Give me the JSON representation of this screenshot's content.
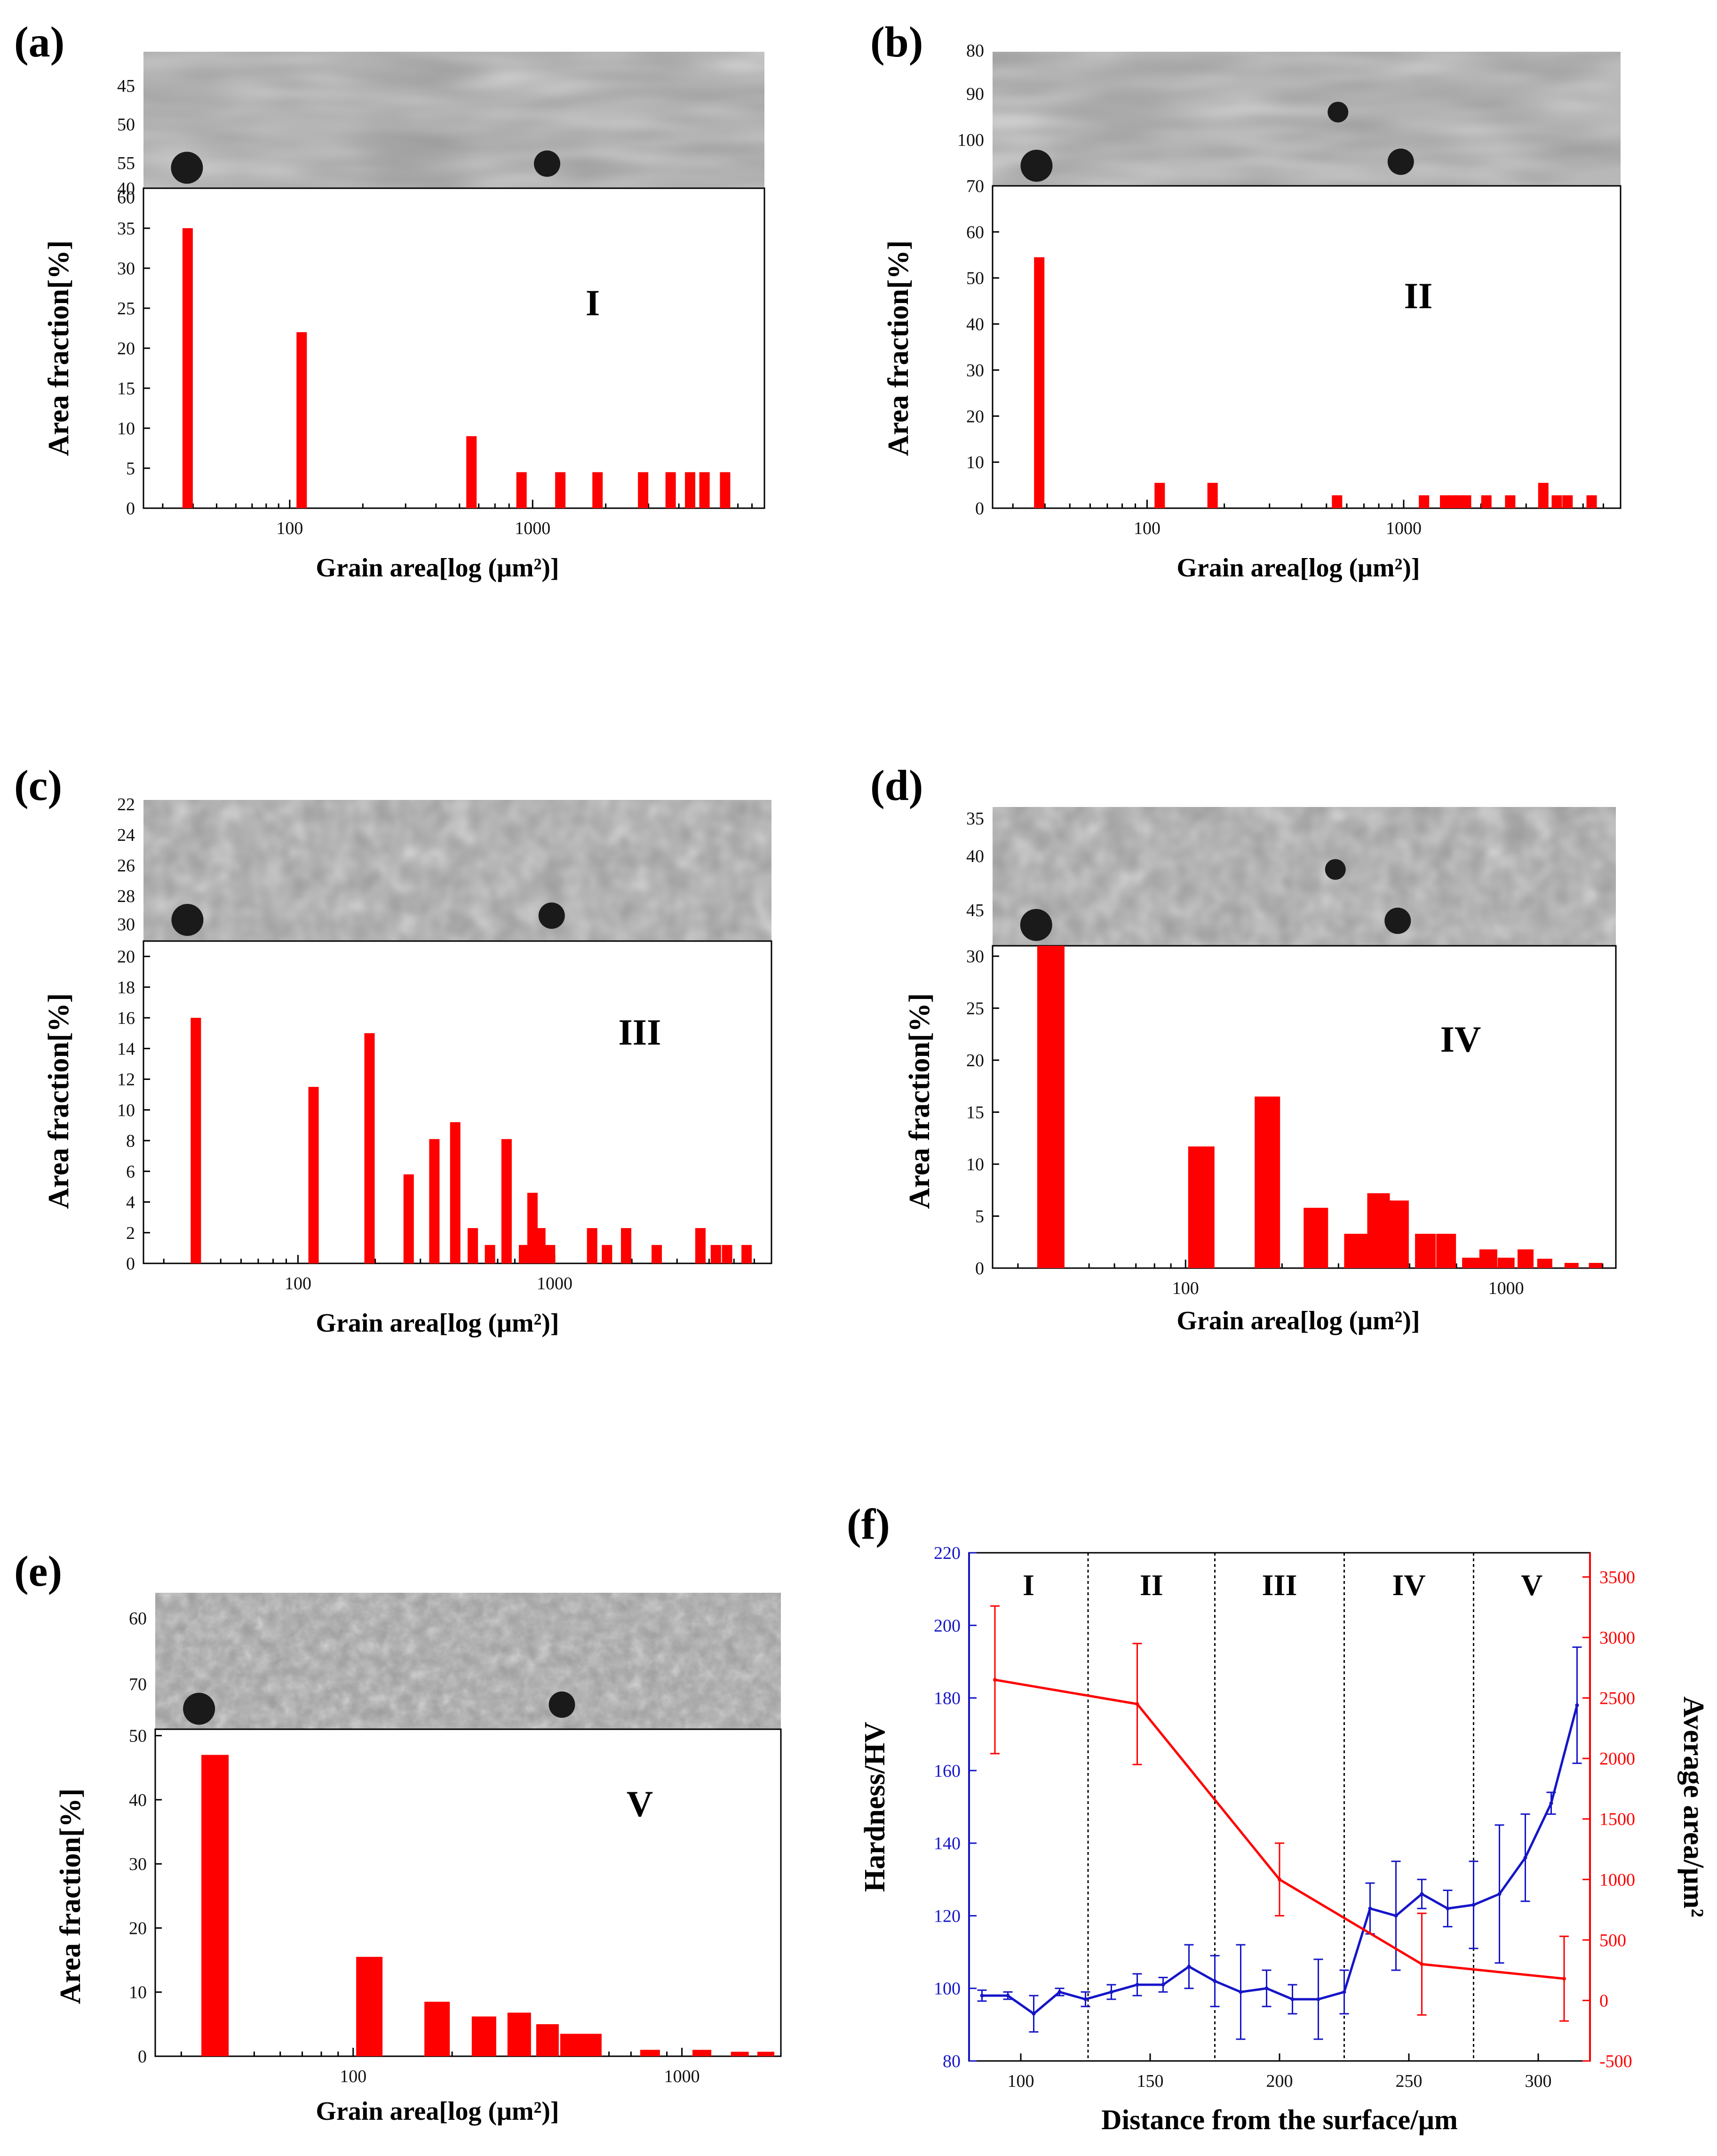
{
  "colors": {
    "bar": "#ff0000",
    "hardness": "#1515c8",
    "area": "#ff0000",
    "micrograph": "#9a9a9a",
    "axis": "#000000"
  },
  "axis_labels": {
    "area_fraction": "Area fraction[%]",
    "grain_area": "Grain area[log (μm²)]"
  },
  "chart_data": [
    {
      "panel": "(a)",
      "type": "bar",
      "zone": "I",
      "xscale": "log",
      "xlim": [
        25,
        9000
      ],
      "ylim": [
        0,
        40
      ],
      "xticks": [
        "100",
        "1000"
      ],
      "yticks": [
        "0",
        "5",
        "10",
        "15",
        "20",
        "25",
        "30",
        "35",
        "40"
      ],
      "image_yticks": [
        "45",
        "50",
        "55",
        "60"
      ],
      "xlabel": "Grain area[log (μm²)]",
      "ylabel": "Area fraction[%]",
      "x": [
        38,
        112,
        560,
        900,
        1300,
        1850,
        2850,
        3700,
        4450,
        5100,
        6200
      ],
      "values": [
        35,
        22,
        9,
        4.5,
        4.5,
        4.5,
        4.5,
        4.5,
        4.5,
        4.5,
        4.5
      ]
    },
    {
      "panel": "(b)",
      "type": "bar",
      "zone": "II",
      "xscale": "log",
      "xlim": [
        25,
        7000
      ],
      "ylim": [
        0,
        70
      ],
      "xticks": [
        "100",
        "1000"
      ],
      "yticks": [
        "0",
        "10",
        "20",
        "30",
        "40",
        "50",
        "60",
        "70"
      ],
      "image_yticks": [
        "80",
        "90",
        "100"
      ],
      "xlabel": "Grain area[log (μm²)]",
      "ylabel": "Area fraction[%]",
      "x": [
        38,
        112,
        180,
        550,
        1200,
        1450,
        1550,
        1650,
        1750,
        2100,
        2600,
        3500,
        3950,
        4350,
        5400
      ],
      "values": [
        54.5,
        5.5,
        5.5,
        2.8,
        2.8,
        2.8,
        2.8,
        2.8,
        2.8,
        2.8,
        2.8,
        5.5,
        2.8,
        2.8,
        2.8
      ]
    },
    {
      "panel": "(c)",
      "type": "bar",
      "zone": "III",
      "xscale": "log",
      "xlim": [
        25,
        7000
      ],
      "ylim": [
        0,
        21
      ],
      "xticks": [
        "100",
        "1000"
      ],
      "yticks": [
        "0",
        "2",
        "4",
        "6",
        "8",
        "10",
        "12",
        "14",
        "16",
        "18",
        "20"
      ],
      "image_yticks": [
        "22",
        "24",
        "26",
        "28",
        "30"
      ],
      "xlabel": "Grain area[log (μm²)]",
      "ylabel": "Area fraction[%]",
      "x": [
        40,
        115,
        190,
        270,
        340,
        410,
        480,
        560,
        650,
        760,
        820,
        880,
        960,
        1400,
        1600,
        1900,
        2500,
        3700,
        4250,
        4700,
        5600
      ],
      "values": [
        16,
        11.5,
        15,
        5.8,
        8.1,
        9.2,
        2.3,
        1.2,
        8.1,
        1.2,
        4.6,
        2.3,
        1.2,
        2.3,
        1.2,
        2.3,
        1.2,
        2.3,
        1.2,
        1.2,
        1.2
      ]
    },
    {
      "panel": "(d)",
      "type": "bar",
      "zone": "IV",
      "xscale": "log",
      "xlim": [
        25,
        2200
      ],
      "ylim": [
        0,
        31
      ],
      "xticks": [
        "100",
        "1000"
      ],
      "yticks": [
        "0",
        "5",
        "10",
        "15",
        "20",
        "25",
        "30"
      ],
      "image_yticks": [
        "35",
        "40",
        "45"
      ],
      "xlabel": "Grain area[log (μm²)]",
      "ylabel": "Area fraction[%]",
      "x": [
        38,
        112,
        180,
        255,
        340,
        400,
        460,
        560,
        650,
        780,
        880,
        1000,
        1150,
        1320,
        1600,
        1900
      ],
      "values": [
        31.5,
        11.7,
        16.5,
        5.8,
        3.3,
        7.2,
        6.5,
        3.3,
        3.3,
        1,
        1.8,
        1,
        1.8,
        0.9,
        0.5,
        0.5
      ]
    },
    {
      "panel": "(e)",
      "type": "bar",
      "zone": "V",
      "xscale": "log",
      "xlim": [
        25,
        2000
      ],
      "ylim": [
        0,
        51
      ],
      "xticks": [
        "100",
        "1000"
      ],
      "yticks": [
        "0",
        "10",
        "20",
        "30",
        "40",
        "50"
      ],
      "image_yticks": [
        "60",
        "70"
      ],
      "xlabel": "Grain area[log (μm²)]",
      "ylabel": "Area fraction[%]",
      "x": [
        38,
        112,
        180,
        250,
        320,
        390,
        460,
        530,
        800,
        1150,
        1500,
        1800
      ],
      "values": [
        47,
        15.5,
        8.5,
        6.2,
        6.8,
        5,
        3.5,
        3.5,
        1,
        1,
        0.7,
        0.7
      ]
    },
    {
      "panel": "(f)",
      "type": "line",
      "xlabel": "Distance from the surface/μm",
      "ylabel": "Hardness/HV",
      "y2label": "Average area/μm²",
      "xlim": [
        80,
        320
      ],
      "ylim": [
        80,
        220
      ],
      "y2lim": [
        -500,
        3700
      ],
      "xticks": [
        "100",
        "150",
        "200",
        "250",
        "300"
      ],
      "yticks": [
        "80",
        "100",
        "120",
        "140",
        "160",
        "180",
        "200",
        "220"
      ],
      "y2ticks": [
        "-500",
        "0",
        "500",
        "1000",
        "1500",
        "2000",
        "2500",
        "3000",
        "3500"
      ],
      "zones": [
        "I",
        "II",
        "III",
        "IV",
        "V"
      ],
      "zone_boundaries": [
        126,
        175,
        225,
        275
      ],
      "series": [
        {
          "axis": "left",
          "x": [
            85,
            95,
            105,
            115,
            125,
            135,
            145,
            155,
            165,
            175,
            185,
            195,
            205,
            215,
            225,
            235,
            245,
            255,
            265,
            275,
            285,
            295,
            305,
            315
          ],
          "y": [
            98,
            98,
            93,
            99,
            97,
            99,
            101,
            101,
            106,
            102,
            99,
            100,
            97,
            97,
            99,
            122,
            120,
            126,
            122,
            123,
            126,
            136,
            151,
            178
          ],
          "err": [
            1.5,
            1,
            5,
            1,
            2,
            2,
            3,
            2,
            6,
            7,
            13,
            5,
            4,
            11,
            6,
            7,
            15,
            4,
            5,
            12,
            19,
            12,
            3,
            16
          ]
        },
        {
          "axis": "right",
          "x": [
            90,
            145,
            200,
            255,
            310
          ],
          "y": [
            2650,
            2450,
            1000,
            300,
            180
          ],
          "err": [
            610,
            500,
            300,
            420,
            350
          ]
        }
      ]
    }
  ]
}
